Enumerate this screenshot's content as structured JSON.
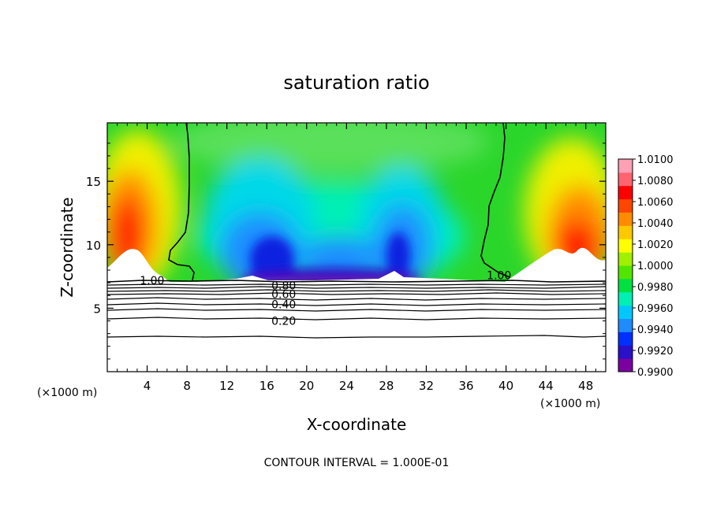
{
  "chart_data": {
    "type": "heatmap",
    "title": "saturation ratio",
    "xlabel": "X-coordinate",
    "ylabel": "Z-coordinate",
    "x_unit": "(×1000 m)",
    "y_unit": "(×1000 m)",
    "xlim": [
      0,
      50
    ],
    "ylim": [
      0,
      19.6
    ],
    "x_ticks": [
      4,
      8,
      12,
      16,
      20,
      24,
      28,
      32,
      36,
      40,
      44,
      48
    ],
    "y_ticks": [
      5,
      10,
      15
    ],
    "colorbar": {
      "ticks": [
        "1.0100",
        "1.0080",
        "1.0060",
        "1.0040",
        "1.0020",
        "1.0000",
        "0.9980",
        "0.9960",
        "0.9940",
        "0.9920",
        "0.9900"
      ],
      "range": [
        0.99,
        1.01
      ],
      "colors": [
        "#7a00a0",
        "#2a10c8",
        "#0030ff",
        "#1e8cff",
        "#00c8ff",
        "#00f0b4",
        "#00e040",
        "#50e600",
        "#a0f000",
        "#ffff00",
        "#ffc800",
        "#ff8c00",
        "#ff4600",
        "#ff0000",
        "#ff6470",
        "#ffa0b4"
      ]
    },
    "contour_labels": [
      {
        "text": "1.00",
        "x": 4.5,
        "z": 7.2
      },
      {
        "text": "1.00",
        "x": 39.3,
        "z": 7.6
      },
      {
        "text": "0.80",
        "x": 17.7,
        "z": 6.8
      },
      {
        "text": "0.60",
        "x": 17.7,
        "z": 6.1
      },
      {
        "text": "0.40",
        "x": 17.7,
        "z": 5.3
      },
      {
        "text": "0.20",
        "x": 17.7,
        "z": 4.0
      }
    ],
    "contour_interval_note": "CONTOUR INTERVAL = 1.000E-01"
  }
}
